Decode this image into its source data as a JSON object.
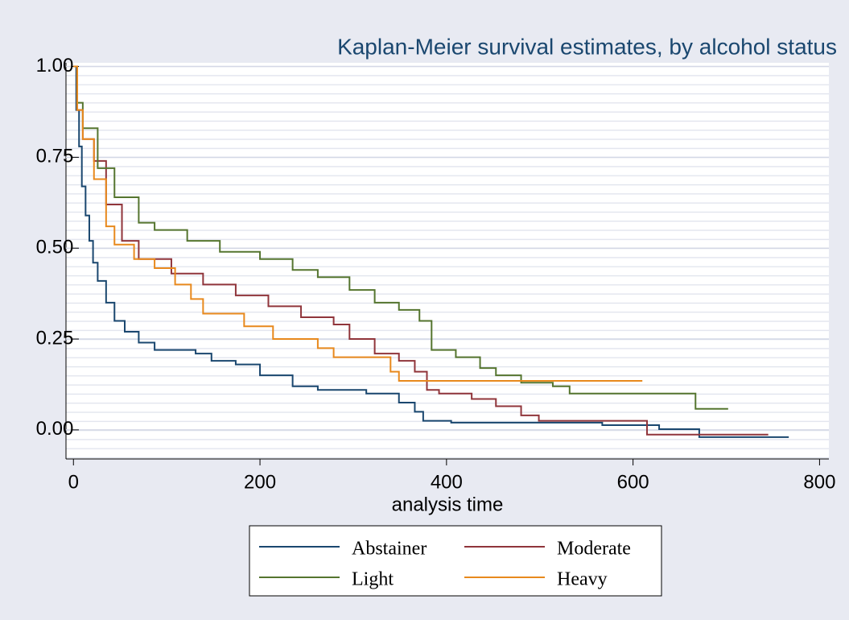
{
  "chart_data": {
    "type": "step",
    "title": "Kaplan-Meier survival estimates, by alcohol status",
    "x_label": "analysis time",
    "xlim": [
      -8,
      810
    ],
    "ylim": [
      -0.08,
      1.01
    ],
    "xticks": [
      0,
      200,
      400,
      600,
      800
    ],
    "yticks": [
      {
        "value": 0,
        "label": "0.00"
      },
      {
        "value": 0.25,
        "label": "0.25"
      },
      {
        "value": 0.5,
        "label": "0.50"
      },
      {
        "value": 0.75,
        "label": "0.75"
      },
      {
        "value": 1,
        "label": "1.00"
      }
    ],
    "grid": true,
    "legend": "bottom",
    "series": [
      {
        "name": "Abstainer",
        "color": "#1a476f",
        "x": [
          0,
          3,
          6,
          9,
          13,
          17,
          21,
          26,
          35,
          44,
          55,
          70,
          87,
          131,
          148,
          174,
          200,
          235,
          262,
          314,
          349,
          366,
          375,
          405,
          567,
          628,
          671,
          767
        ],
        "values": [
          1.0,
          0.88,
          0.78,
          0.67,
          0.59,
          0.52,
          0.46,
          0.41,
          0.35,
          0.3,
          0.27,
          0.24,
          0.22,
          0.21,
          0.19,
          0.18,
          0.15,
          0.12,
          0.11,
          0.1,
          0.075,
          0.05,
          0.025,
          0.02,
          0.013,
          0.002,
          -0.02,
          -0.02
        ]
      },
      {
        "name": "Moderate",
        "color": "#90353b",
        "x": [
          0,
          4,
          10,
          22,
          35,
          52,
          70,
          105,
          139,
          174,
          209,
          244,
          279,
          296,
          323,
          349,
          366,
          379,
          392,
          427,
          453,
          480,
          499,
          615,
          745
        ],
        "values": [
          1.0,
          0.88,
          0.8,
          0.74,
          0.62,
          0.52,
          0.47,
          0.43,
          0.4,
          0.37,
          0.34,
          0.31,
          0.29,
          0.25,
          0.21,
          0.19,
          0.16,
          0.11,
          0.1,
          0.085,
          0.065,
          0.04,
          0.025,
          -0.013,
          -0.013
        ]
      },
      {
        "name": "Light",
        "color": "#55752f",
        "x": [
          0,
          4,
          10,
          26,
          44,
          70,
          87,
          122,
          157,
          200,
          235,
          262,
          296,
          323,
          349,
          371,
          384,
          410,
          436,
          453,
          480,
          514,
          532,
          667,
          702
        ],
        "values": [
          1.0,
          0.9,
          0.83,
          0.72,
          0.64,
          0.57,
          0.55,
          0.52,
          0.49,
          0.47,
          0.44,
          0.42,
          0.385,
          0.35,
          0.33,
          0.3,
          0.22,
          0.2,
          0.17,
          0.15,
          0.13,
          0.12,
          0.1,
          0.058,
          0.058
        ]
      },
      {
        "name": "Heavy",
        "color": "#e8891d",
        "x": [
          0,
          4,
          10,
          22,
          35,
          44,
          65,
          87,
          109,
          126,
          139,
          183,
          214,
          262,
          279,
          340,
          349,
          610
        ],
        "values": [
          1.0,
          0.88,
          0.8,
          0.69,
          0.56,
          0.51,
          0.47,
          0.445,
          0.4,
          0.36,
          0.32,
          0.285,
          0.25,
          0.225,
          0.2,
          0.16,
          0.135,
          0.135
        ]
      }
    ]
  }
}
